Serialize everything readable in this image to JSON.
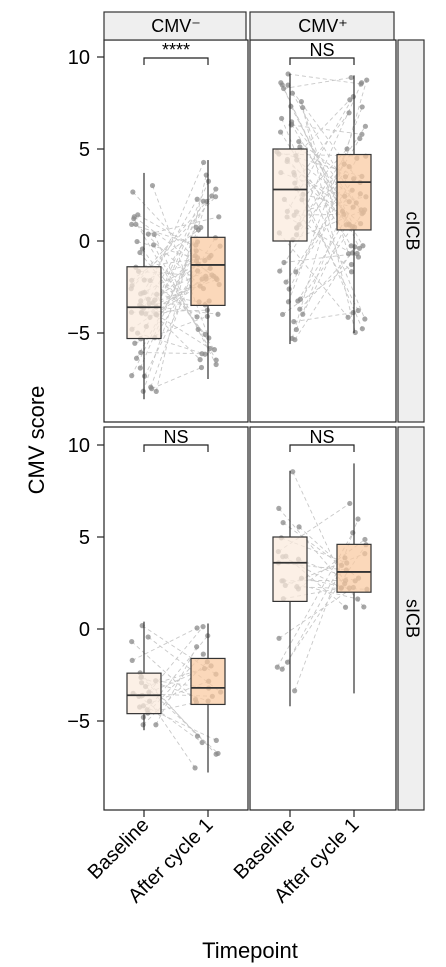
{
  "chart_data": {
    "type": "box",
    "xlabel": "Timepoint",
    "ylabel": "CMV score",
    "col_strips": [
      "CMV⁻",
      "CMV⁺"
    ],
    "row_strips": [
      "cICB",
      "sICB"
    ],
    "categories": [
      "Baseline",
      "After cycle 1"
    ],
    "colors": {
      "Baseline": "#fbeadc",
      "After cycle 1": "#f9c9a0"
    },
    "y_ticks": [
      -5,
      0,
      5,
      10
    ],
    "panels": [
      {
        "row": "cICB",
        "col": "CMV⁻",
        "ylim": [
          -9,
          10.5
        ],
        "significance": "****",
        "boxes": [
          {
            "group": "Baseline",
            "min": -8.6,
            "q1": -5.3,
            "median": -3.6,
            "q3": -1.4,
            "max": 3.7
          },
          {
            "group": "After cycle 1",
            "min": -7.5,
            "q1": -3.5,
            "median": -1.3,
            "q3": 0.2,
            "max": 4.4
          }
        ]
      },
      {
        "row": "cICB",
        "col": "CMV⁺",
        "ylim": [
          -9,
          10.5
        ],
        "significance": "NS",
        "boxes": [
          {
            "group": "Baseline",
            "min": -5.6,
            "q1": 0.0,
            "median": 2.8,
            "q3": 5.0,
            "max": 9.1
          },
          {
            "group": "After cycle 1",
            "min": -5.0,
            "q1": 0.6,
            "median": 3.2,
            "q3": 4.7,
            "max": 9.0
          }
        ]
      },
      {
        "row": "sICB",
        "col": "CMV⁻",
        "ylim": [
          -9.5,
          10.5
        ],
        "significance": "NS",
        "boxes": [
          {
            "group": "Baseline",
            "min": -5.5,
            "q1": -4.6,
            "median": -3.6,
            "q3": -2.4,
            "max": 0.4
          },
          {
            "group": "After cycle 1",
            "min": -7.8,
            "q1": -4.1,
            "median": -3.2,
            "q3": -1.6,
            "max": 0.3
          }
        ]
      },
      {
        "row": "sICB",
        "col": "CMV⁺",
        "ylim": [
          -9.5,
          10.5
        ],
        "significance": "NS",
        "boxes": [
          {
            "group": "Baseline",
            "min": -4.2,
            "q1": 1.5,
            "median": 3.6,
            "q3": 5.0,
            "max": 8.6
          },
          {
            "group": "After cycle 1",
            "min": -3.5,
            "q1": 2.0,
            "median": 3.1,
            "q3": 4.6,
            "max": 9.0
          }
        ]
      }
    ]
  }
}
